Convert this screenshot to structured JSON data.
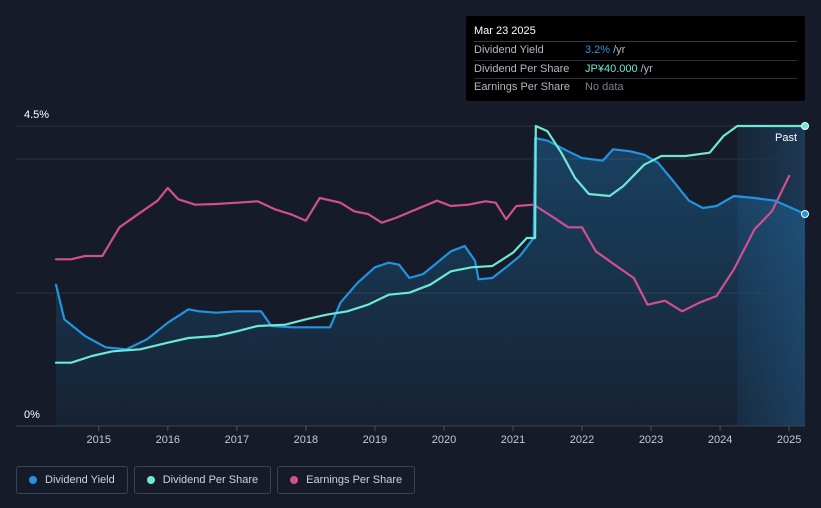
{
  "tooltip": {
    "date": "Mar 23 2025",
    "rows": [
      {
        "label": "Dividend Yield",
        "value": "3.2%",
        "unit": "/yr",
        "color": "#2394df"
      },
      {
        "label": "Dividend Per Share",
        "value": "JP¥40.000",
        "unit": "/yr",
        "color": "#6ee8d4"
      },
      {
        "label": "Earnings Per Share",
        "value": "No data",
        "unit": "",
        "color": "#7c818b"
      }
    ]
  },
  "past_label": "Past",
  "legend": [
    {
      "label": "Dividend Yield",
      "color": "#2394df"
    },
    {
      "label": "Dividend Per Share",
      "color": "#6ee8d4"
    },
    {
      "label": "Earnings Per Share",
      "color": "#d0508f"
    }
  ],
  "chart_data": {
    "type": "line",
    "x_range": [
      2014.05,
      2025.23
    ],
    "x_ticks": [
      "2015",
      "2016",
      "2017",
      "2018",
      "2019",
      "2020",
      "2021",
      "2022",
      "2023",
      "2024",
      "2025"
    ],
    "y_tick_labels": [
      "4.5%",
      "0%"
    ],
    "y_range": [
      0,
      4.5
    ],
    "past_region_start": 2024.25,
    "grid": true,
    "series": [
      {
        "name": "Dividend Yield",
        "color": "#2394df",
        "fill": true,
        "points": [
          [
            2014.38,
            2.12
          ],
          [
            2014.5,
            1.6
          ],
          [
            2014.8,
            1.35
          ],
          [
            2015.1,
            1.18
          ],
          [
            2015.4,
            1.15
          ],
          [
            2015.7,
            1.3
          ],
          [
            2016.0,
            1.55
          ],
          [
            2016.3,
            1.75
          ],
          [
            2016.45,
            1.72
          ],
          [
            2016.7,
            1.7
          ],
          [
            2017.0,
            1.72
          ],
          [
            2017.35,
            1.72
          ],
          [
            2017.5,
            1.5
          ],
          [
            2017.8,
            1.48
          ],
          [
            2018.1,
            1.48
          ],
          [
            2018.35,
            1.48
          ],
          [
            2018.5,
            1.85
          ],
          [
            2018.75,
            2.15
          ],
          [
            2019.0,
            2.38
          ],
          [
            2019.2,
            2.45
          ],
          [
            2019.35,
            2.42
          ],
          [
            2019.5,
            2.22
          ],
          [
            2019.7,
            2.28
          ],
          [
            2019.9,
            2.45
          ],
          [
            2020.1,
            2.62
          ],
          [
            2020.3,
            2.7
          ],
          [
            2020.45,
            2.48
          ],
          [
            2020.5,
            2.2
          ],
          [
            2020.7,
            2.22
          ],
          [
            2020.9,
            2.38
          ],
          [
            2021.1,
            2.55
          ],
          [
            2021.3,
            2.82
          ],
          [
            2021.32,
            4.32
          ],
          [
            2021.5,
            4.28
          ],
          [
            2021.8,
            4.12
          ],
          [
            2022.0,
            4.02
          ],
          [
            2022.3,
            3.98
          ],
          [
            2022.45,
            4.15
          ],
          [
            2022.7,
            4.12
          ],
          [
            2022.9,
            4.07
          ],
          [
            2023.1,
            3.95
          ],
          [
            2023.3,
            3.7
          ],
          [
            2023.55,
            3.38
          ],
          [
            2023.75,
            3.27
          ],
          [
            2023.95,
            3.3
          ],
          [
            2024.2,
            3.45
          ],
          [
            2024.5,
            3.42
          ],
          [
            2024.8,
            3.38
          ],
          [
            2025.23,
            3.18
          ]
        ]
      },
      {
        "name": "Dividend Per Share",
        "color": "#6ee8d4",
        "fill": false,
        "points": [
          [
            2014.38,
            0.95
          ],
          [
            2014.6,
            0.95
          ],
          [
            2014.9,
            1.05
          ],
          [
            2015.2,
            1.12
          ],
          [
            2015.6,
            1.15
          ],
          [
            2016.0,
            1.25
          ],
          [
            2016.3,
            1.32
          ],
          [
            2016.7,
            1.35
          ],
          [
            2017.0,
            1.42
          ],
          [
            2017.3,
            1.5
          ],
          [
            2017.7,
            1.52
          ],
          [
            2018.0,
            1.6
          ],
          [
            2018.3,
            1.67
          ],
          [
            2018.6,
            1.72
          ],
          [
            2018.9,
            1.82
          ],
          [
            2019.2,
            1.97
          ],
          [
            2019.5,
            2.0
          ],
          [
            2019.8,
            2.12
          ],
          [
            2020.1,
            2.32
          ],
          [
            2020.4,
            2.38
          ],
          [
            2020.7,
            2.4
          ],
          [
            2021.0,
            2.6
          ],
          [
            2021.2,
            2.82
          ],
          [
            2021.32,
            2.82
          ],
          [
            2021.33,
            4.5
          ],
          [
            2021.5,
            4.42
          ],
          [
            2021.7,
            4.1
          ],
          [
            2021.9,
            3.72
          ],
          [
            2022.1,
            3.48
          ],
          [
            2022.4,
            3.45
          ],
          [
            2022.6,
            3.6
          ],
          [
            2022.9,
            3.92
          ],
          [
            2023.15,
            4.05
          ],
          [
            2023.5,
            4.05
          ],
          [
            2023.85,
            4.1
          ],
          [
            2024.05,
            4.35
          ],
          [
            2024.25,
            4.5
          ],
          [
            2025.23,
            4.5
          ]
        ]
      },
      {
        "name": "Earnings Per Share",
        "color": "#d0508f",
        "fill": false,
        "points": [
          [
            2014.38,
            2.5
          ],
          [
            2014.6,
            2.5
          ],
          [
            2014.8,
            2.55
          ],
          [
            2015.05,
            2.55
          ],
          [
            2015.3,
            2.98
          ],
          [
            2015.6,
            3.2
          ],
          [
            2015.85,
            3.38
          ],
          [
            2016.0,
            3.57
          ],
          [
            2016.15,
            3.4
          ],
          [
            2016.4,
            3.32
          ],
          [
            2016.7,
            3.33
          ],
          [
            2017.0,
            3.35
          ],
          [
            2017.3,
            3.37
          ],
          [
            2017.55,
            3.25
          ],
          [
            2017.8,
            3.17
          ],
          [
            2018.0,
            3.08
          ],
          [
            2018.2,
            3.42
          ],
          [
            2018.5,
            3.35
          ],
          [
            2018.7,
            3.22
          ],
          [
            2018.9,
            3.18
          ],
          [
            2019.1,
            3.05
          ],
          [
            2019.3,
            3.12
          ],
          [
            2019.6,
            3.25
          ],
          [
            2019.9,
            3.38
          ],
          [
            2020.1,
            3.3
          ],
          [
            2020.35,
            3.32
          ],
          [
            2020.6,
            3.37
          ],
          [
            2020.75,
            3.35
          ],
          [
            2020.9,
            3.1
          ],
          [
            2021.05,
            3.3
          ],
          [
            2021.3,
            3.32
          ],
          [
            2021.6,
            3.12
          ],
          [
            2021.8,
            2.98
          ],
          [
            2022.0,
            2.98
          ],
          [
            2022.2,
            2.62
          ],
          [
            2022.5,
            2.4
          ],
          [
            2022.75,
            2.22
          ],
          [
            2022.95,
            1.82
          ],
          [
            2023.2,
            1.88
          ],
          [
            2023.45,
            1.72
          ],
          [
            2023.7,
            1.85
          ],
          [
            2023.95,
            1.95
          ],
          [
            2024.2,
            2.35
          ],
          [
            2024.5,
            2.95
          ],
          [
            2024.75,
            3.22
          ],
          [
            2025.0,
            3.75
          ]
        ]
      }
    ]
  }
}
